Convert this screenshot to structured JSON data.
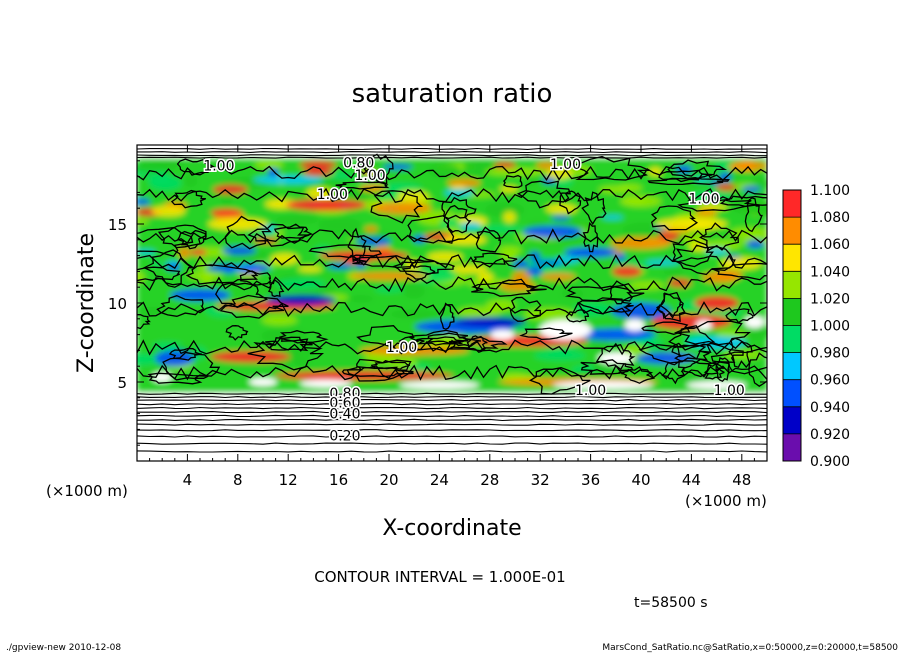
{
  "chart_data": {
    "type": "heatmap",
    "title": "saturation ratio",
    "xlabel": "X-coordinate",
    "ylabel": "Z-coordinate",
    "x_unit_left": "(×1000 m)",
    "x_unit_right": "(×1000 m)",
    "xlim": [
      0,
      50
    ],
    "ylim": [
      0,
      20
    ],
    "x_ticks": [
      "4",
      "8",
      "12",
      "16",
      "20",
      "24",
      "28",
      "32",
      "36",
      "40",
      "44",
      "48"
    ],
    "x_tick_values": [
      4,
      8,
      12,
      16,
      20,
      24,
      28,
      32,
      36,
      40,
      44,
      48
    ],
    "y_ticks": [
      "5",
      "10",
      "15"
    ],
    "y_tick_values": [
      5,
      10,
      15
    ],
    "colorbar": {
      "levels": [
        "0.900",
        "0.920",
        "0.940",
        "0.960",
        "0.980",
        "1.000",
        "1.020",
        "1.040",
        "1.060",
        "1.080",
        "1.100"
      ],
      "colors": [
        "#6a0dad",
        "#0000c8",
        "#0050ff",
        "#00c8ff",
        "#00dc64",
        "#1ec81e",
        "#96e600",
        "#ffe600",
        "#ff8c00",
        "#ff2828",
        "#ff9090"
      ]
    },
    "contour_labels": [
      {
        "text": "1.00",
        "x": 6.5,
        "z": 18.7
      },
      {
        "text": "0.80",
        "x": 17.6,
        "z": 18.9
      },
      {
        "text": "1.00",
        "x": 18.5,
        "z": 18.1
      },
      {
        "text": "1.00",
        "x": 34.0,
        "z": 18.8
      },
      {
        "text": "1.00",
        "x": 15.5,
        "z": 16.9
      },
      {
        "text": "1.00",
        "x": 45.0,
        "z": 16.6
      },
      {
        "text": "1.00",
        "x": 21.0,
        "z": 7.2
      },
      {
        "text": "1.00",
        "x": 36.0,
        "z": 4.5
      },
      {
        "text": "1.00",
        "x": 47.0,
        "z": 4.5
      },
      {
        "text": "0.80",
        "x": 16.5,
        "z": 4.3
      },
      {
        "text": "0.60",
        "x": 16.5,
        "z": 3.7
      },
      {
        "text": "0.40",
        "x": 16.5,
        "z": 3.0
      },
      {
        "text": "0.20",
        "x": 16.5,
        "z": 1.6
      }
    ],
    "contour_interval_text": "CONTOUR INTERVAL = 1.000E-01",
    "time_text": "t=58500 s"
  },
  "footer": {
    "left": "./gpview-new  2010-12-08",
    "right": "MarsCond_SatRatio.nc@SatRatio,x=0:50000,z=0:20000,t=58500"
  }
}
